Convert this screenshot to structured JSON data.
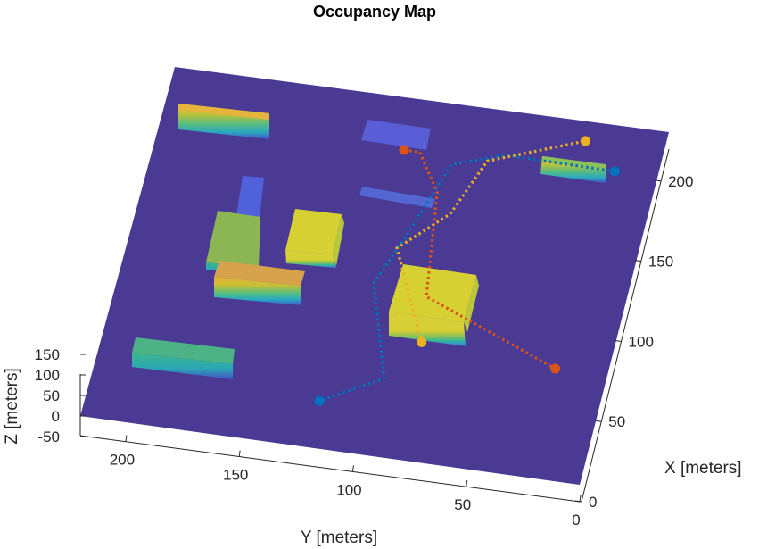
{
  "chart_data": {
    "type": "3d-surface-occupancy",
    "title": "Occupancy Map",
    "xlabel": "X [meters]",
    "ylabel": "Y [meters]",
    "zlabel": "Z [meters]",
    "x_ticks": [
      "0",
      "50",
      "100",
      "150",
      "200"
    ],
    "y_ticks": [
      "200",
      "150",
      "100",
      "50",
      "0"
    ],
    "z_ticks": [
      "150",
      "100",
      "50",
      "0",
      "-50"
    ],
    "colors": {
      "ground": "#4a3a94",
      "blue_path": "#0072bd",
      "orange_path": "#d95319",
      "yellow_path": "#edb120"
    },
    "paths": [
      {
        "color": "blue",
        "points": [
          [
            192,
            19
          ],
          [
            193,
            68
          ],
          [
            183,
            90
          ],
          [
            138,
            101
          ],
          [
            105,
            110
          ],
          [
            48,
            95
          ],
          [
            29,
            120
          ]
        ]
      },
      {
        "color": "orange",
        "points": [
          [
            188,
            112
          ],
          [
            188,
            105
          ],
          [
            165,
            93
          ],
          [
            101,
            86
          ],
          [
            68,
            23
          ]
        ]
      },
      {
        "color": "yellow",
        "points": [
          [
            73,
            83
          ],
          [
            128,
            104
          ],
          [
            153,
            85
          ],
          [
            188,
            75
          ],
          [
            208,
            35
          ]
        ]
      }
    ]
  }
}
